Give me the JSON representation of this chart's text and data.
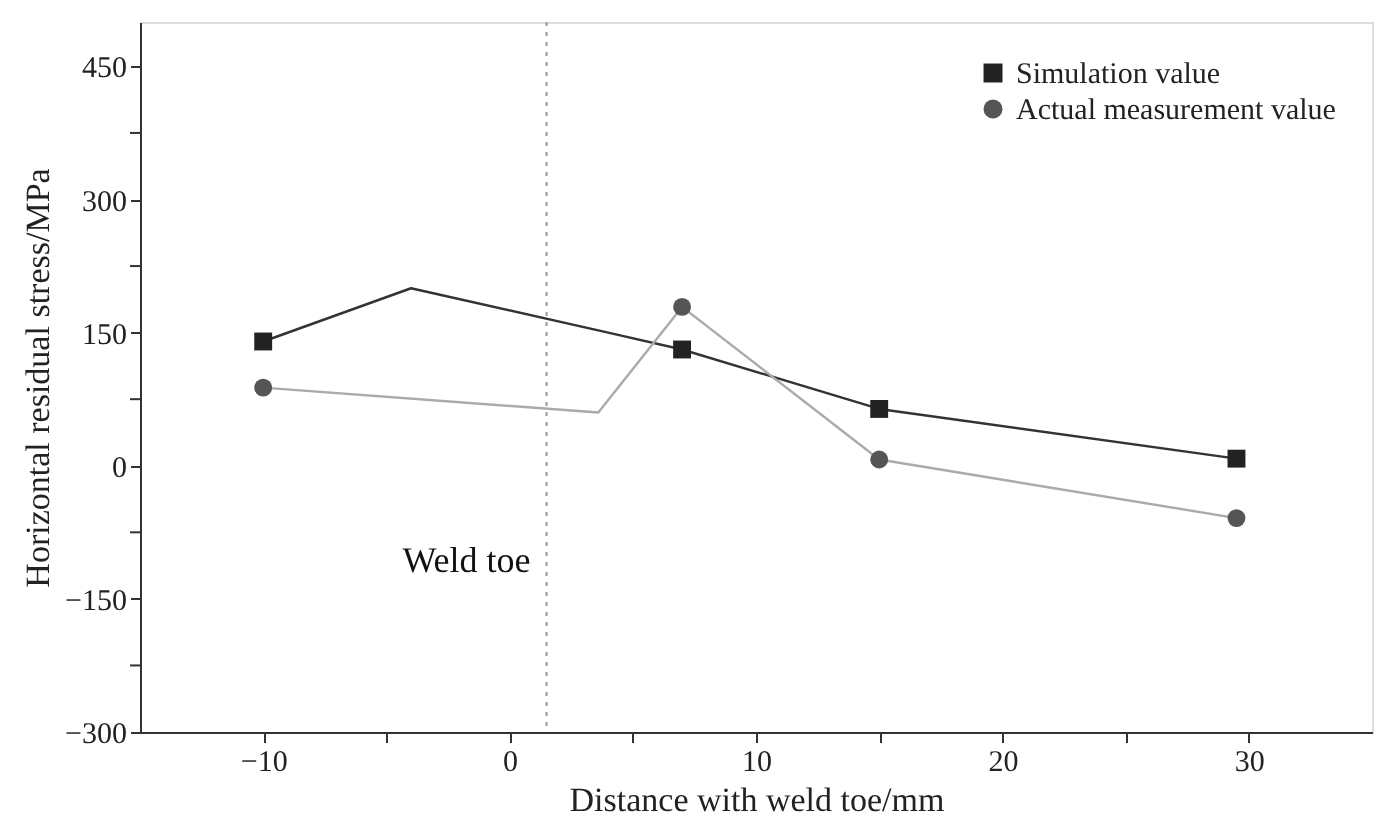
{
  "chart_data": {
    "type": "line",
    "xlabel": "Distance with weld toe/mm",
    "ylabel": "Horizontal residual stress/MPa",
    "xlim": [
      -15,
      35
    ],
    "ylim": [
      -300,
      500
    ],
    "xticks": [
      -10,
      {
        "value": -5,
        "label": null
      },
      0,
      {
        "value": 5,
        "label": null
      },
      10,
      {
        "value": 15,
        "label": null
      },
      20,
      {
        "value": 25,
        "label": null
      },
      30
    ],
    "yticks": [
      -300,
      {
        "value": -225,
        "label": null
      },
      -150,
      {
        "value": -75,
        "label": null
      },
      0,
      {
        "value": 75,
        "label": null
      },
      150,
      {
        "value": 225,
        "label": null
      },
      300,
      {
        "value": 375,
        "label": null
      },
      450
    ],
    "grid": false,
    "legend": "top right",
    "series": [
      {
        "type": "line",
        "color": "#333333",
        "marker": "none",
        "x": [
          -10,
          -4,
          4,
          7,
          15,
          29.5
        ],
        "values": [
          140,
          200,
          150,
          131,
          64,
          8
        ]
      },
      {
        "type": "line",
        "color": "#aaaaaa",
        "marker": "none",
        "x": [
          -10,
          3.6,
          7,
          15,
          29.5
        ],
        "values": [
          88,
          60,
          179,
          7,
          -59
        ]
      },
      {
        "type": "scatter",
        "name": "Simulation value",
        "color": "#222222",
        "marker": "square",
        "x": [
          -10,
          7,
          15,
          29.5
        ],
        "values": [
          140,
          131,
          64,
          8
        ]
      },
      {
        "type": "scatter",
        "name": "Actual measurement value",
        "color": "#555555",
        "marker": "circle",
        "x": [
          -10,
          7,
          15,
          29.5
        ],
        "values": [
          88,
          179,
          7,
          -59
        ]
      }
    ],
    "ref_lines": [
      {
        "axis": "x",
        "value": 1.5,
        "label": "Weld toe",
        "color": "#999999",
        "line_style": "dotted"
      }
    ]
  }
}
